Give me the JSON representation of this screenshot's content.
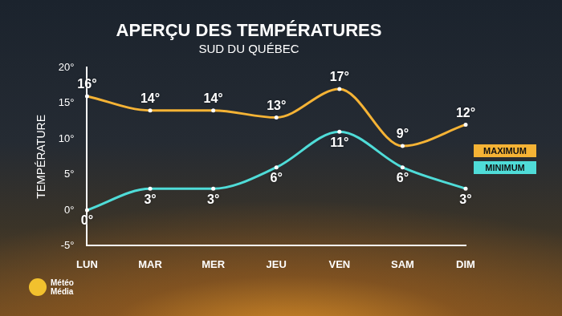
{
  "chart_data": {
    "type": "line",
    "title": "APERÇU DES TEMPÉRATURES",
    "subtitle": "SUD DU QUÉBEC",
    "y_label": "TEMPÉRATURE",
    "source": "Météo Média",
    "categories": [
      "LUN",
      "MAR",
      "MER",
      "JEU",
      "VEN",
      "SAM",
      "DIM"
    ],
    "series": [
      {
        "name": "MAXIMUM",
        "color": "#f5b335",
        "values": [
          16,
          14,
          14,
          13,
          17,
          9,
          12
        ],
        "value_labels": [
          "16°",
          "14°",
          "14°",
          "13°",
          "17°",
          "9°",
          "12°"
        ],
        "marker": "circle",
        "line_style": "solid"
      },
      {
        "name": "MINIMUM",
        "color": "#4fdcd8",
        "values": [
          0,
          3,
          3,
          6,
          11,
          6,
          3
        ],
        "value_labels": [
          "0°",
          "3°",
          "3°",
          "6°",
          "11°",
          "6°",
          "3°"
        ],
        "marker": "circle",
        "line_style": "solid"
      }
    ],
    "ylim": [
      -5,
      20
    ],
    "yticks": [
      {
        "value": -5,
        "label": "-5°"
      },
      {
        "value": 0,
        "label": "0°"
      },
      {
        "value": 5,
        "label": "5°"
      },
      {
        "value": 10,
        "label": "10°"
      },
      {
        "value": 15,
        "label": "15°"
      },
      {
        "value": 20,
        "label": "20°"
      }
    ],
    "grid": false,
    "legend": "right",
    "data_labels": true
  }
}
